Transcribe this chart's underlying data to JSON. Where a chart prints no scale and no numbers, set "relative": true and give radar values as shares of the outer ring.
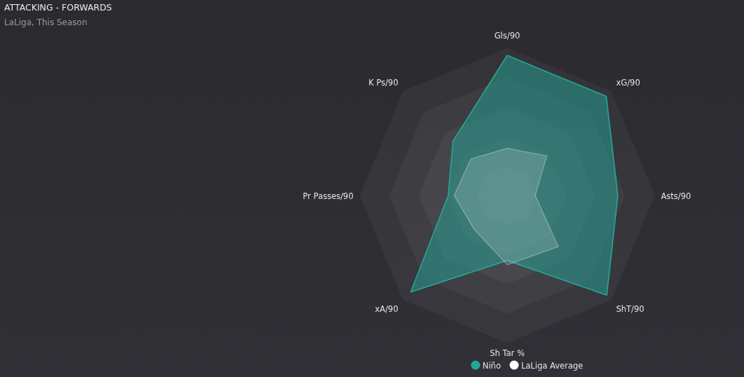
{
  "chart_data": {
    "type": "radar",
    "title": "ATTACKING - FORWARDS",
    "subtitle": "LaLiga, This Season",
    "categories": [
      "Gls/90",
      "xG/90",
      "Asts/90",
      "ShT/90",
      "Sh Tar %",
      "xA/90",
      "Pr Passes/90",
      "K Ps/90"
    ],
    "series": [
      {
        "name": "Niño",
        "color": "#26a69a",
        "values": [
          0.95,
          0.95,
          0.75,
          0.955,
          0.44,
          0.925,
          0.4,
          0.52
        ]
      },
      {
        "name": "LaLiga Average",
        "color": "#ffffff",
        "values": [
          0.32,
          0.38,
          0.19,
          0.49,
          0.47,
          0.32,
          0.36,
          0.35
        ]
      }
    ],
    "relative": true,
    "grid": true,
    "legend": "bottom"
  }
}
